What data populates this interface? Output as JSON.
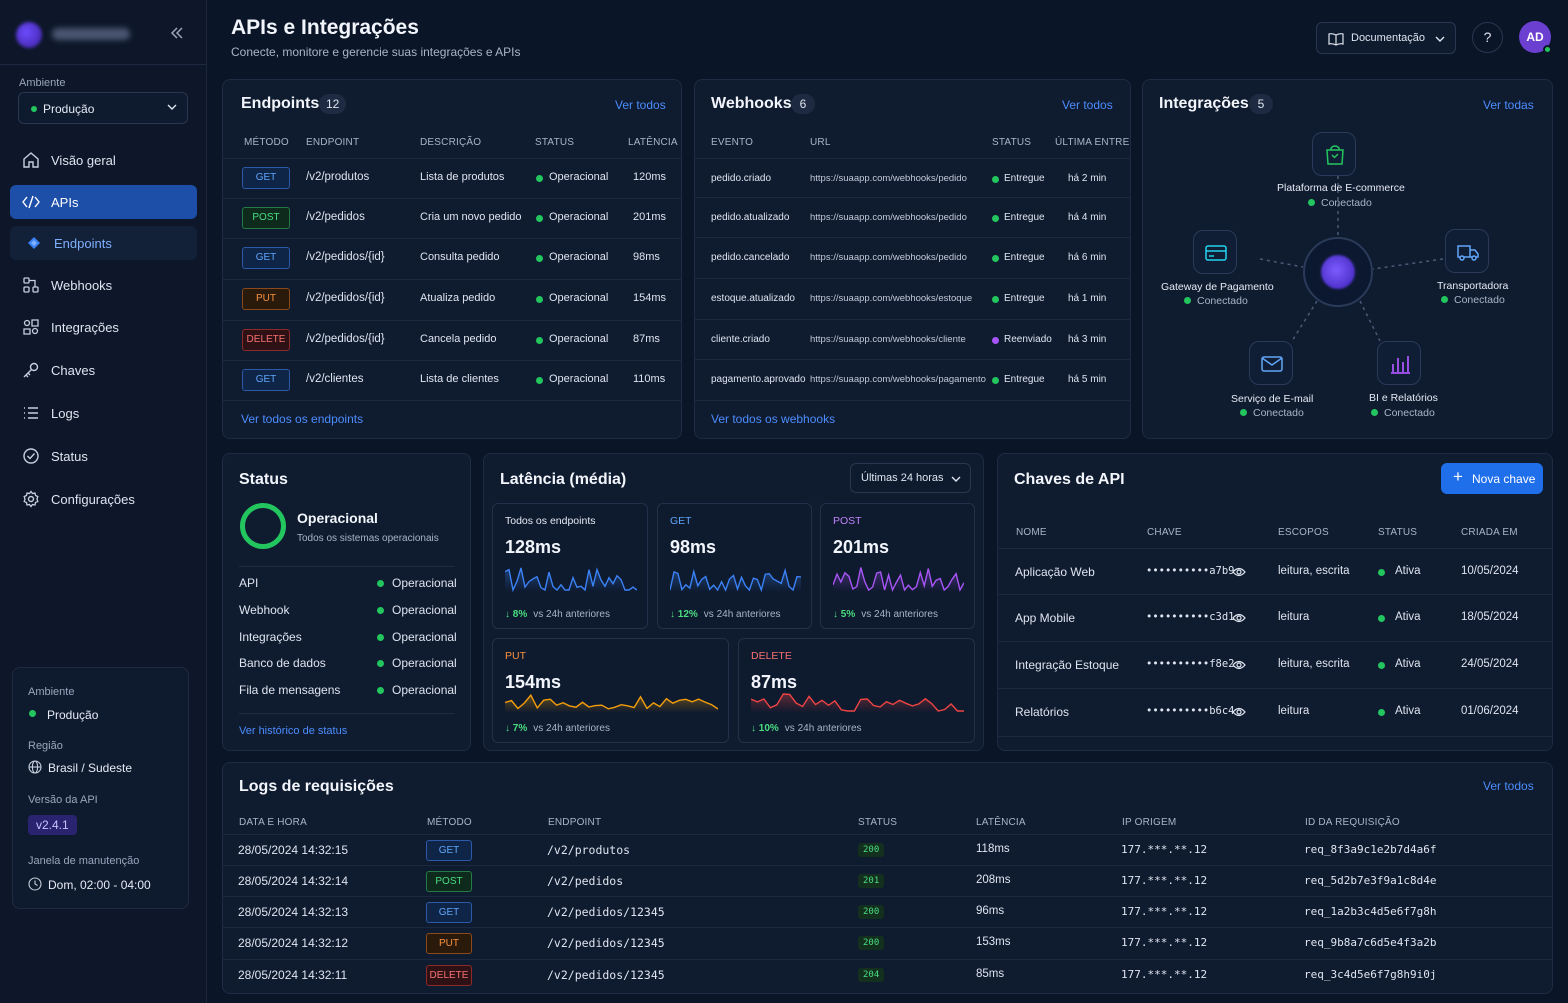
{
  "sidebar": {
    "env_label": "Ambiente",
    "env_value": "Produção",
    "nav": [
      {
        "label": "Visão geral",
        "icon": "home-icon"
      },
      {
        "label": "APIs",
        "icon": "code-icon"
      },
      {
        "label": "Endpoints",
        "icon": "diamond-icon"
      },
      {
        "label": "Webhooks",
        "icon": "webhook-icon"
      },
      {
        "label": "Integrações",
        "icon": "puzzle-icon"
      },
      {
        "label": "Chaves",
        "icon": "key-icon"
      },
      {
        "label": "Logs",
        "icon": "list-icon"
      },
      {
        "label": "Status",
        "icon": "check-circle-icon"
      },
      {
        "label": "Configurações",
        "icon": "gear-icon"
      }
    ],
    "env_card": {
      "env_label": "Ambiente",
      "env_value": "Produção",
      "region_label": "Região",
      "region_value": "Brasil / Sudeste",
      "version_label": "Versão da API",
      "version_value": "v2.4.1",
      "maint_label": "Janela de manutenção",
      "maint_value": "Dom, 02:00 - 04:00"
    }
  },
  "header": {
    "title": "APIs e Integrações",
    "subtitle": "Conecte, monitore e gerencie suas integrações e APIs",
    "doc_label": "Documentação",
    "help": "?",
    "avatar": "AD"
  },
  "endpoints": {
    "title": "Endpoints",
    "count": "12",
    "view_all": "Ver todos",
    "headers": [
      "MÉTODO",
      "ENDPOINT",
      "DESCRIÇÃO",
      "STATUS",
      "LATÊNCIA"
    ],
    "rows": [
      {
        "method": "GET",
        "path": "/v2/produtos",
        "desc": "Lista de produtos",
        "status": "Operacional",
        "latency": "120ms"
      },
      {
        "method": "POST",
        "path": "/v2/pedidos",
        "desc": "Cria um novo pedido",
        "status": "Operacional",
        "latency": "201ms"
      },
      {
        "method": "GET",
        "path": "/v2/pedidos/{id}",
        "desc": "Consulta pedido",
        "status": "Operacional",
        "latency": "98ms"
      },
      {
        "method": "PUT",
        "path": "/v2/pedidos/{id}",
        "desc": "Atualiza pedido",
        "status": "Operacional",
        "latency": "154ms"
      },
      {
        "method": "DELETE",
        "path": "/v2/pedidos/{id}",
        "desc": "Cancela pedido",
        "status": "Operacional",
        "latency": "87ms"
      },
      {
        "method": "GET",
        "path": "/v2/clientes",
        "desc": "Lista de clientes",
        "status": "Operacional",
        "latency": "110ms"
      }
    ],
    "footer": "Ver todos os endpoints"
  },
  "webhooks": {
    "title": "Webhooks",
    "count": "6",
    "view_all": "Ver todos",
    "headers": [
      "EVENTO",
      "URL",
      "STATUS",
      "ÚLTIMA ENTREGA"
    ],
    "rows": [
      {
        "event": "pedido.criado",
        "url": "https://suaapp.com/webhooks/pedido",
        "status": "Entregue",
        "last": "há 2 min",
        "color": "#22c55e"
      },
      {
        "event": "pedido.atualizado",
        "url": "https://suaapp.com/webhooks/pedido",
        "status": "Entregue",
        "last": "há 4 min",
        "color": "#22c55e"
      },
      {
        "event": "pedido.cancelado",
        "url": "https://suaapp.com/webhooks/pedido",
        "status": "Entregue",
        "last": "há 6 min",
        "color": "#22c55e"
      },
      {
        "event": "estoque.atualizado",
        "url": "https://suaapp.com/webhooks/estoque",
        "status": "Entregue",
        "last": "há 1 min",
        "color": "#22c55e"
      },
      {
        "event": "cliente.criado",
        "url": "https://suaapp.com/webhooks/cliente",
        "status": "Reenviado",
        "last": "há 3 min",
        "color": "#a855f7"
      },
      {
        "event": "pagamento.aprovado",
        "url": "https://suaapp.com/webhooks/pagamento",
        "status": "Entregue",
        "last": "há 5 min",
        "color": "#22c55e"
      }
    ],
    "footer": "Ver todos os webhooks"
  },
  "integrations": {
    "title": "Integrações",
    "count": "5",
    "view_all": "Ver todas",
    "nodes": [
      {
        "name": "Plataforma de E-commerce",
        "status": "Conectado",
        "icon": "shopping-bag-icon"
      },
      {
        "name": "Gateway de Pagamento",
        "status": "Conectado",
        "icon": "credit-card-icon"
      },
      {
        "name": "Transportadora",
        "status": "Conectado",
        "icon": "truck-icon"
      },
      {
        "name": "Serviço de E-mail",
        "status": "Conectado",
        "icon": "mail-icon"
      },
      {
        "name": "BI e Relatórios",
        "status": "Conectado",
        "icon": "bar-chart-icon"
      }
    ]
  },
  "status": {
    "title": "Status",
    "headline": "Operacional",
    "sub": "Todos os sistemas operacionais",
    "rows": [
      {
        "name": "API",
        "value": "Operacional"
      },
      {
        "name": "Webhook",
        "value": "Operacional"
      },
      {
        "name": "Integrações",
        "value": "Operacional"
      },
      {
        "name": "Banco de dados",
        "value": "Operacional"
      },
      {
        "name": "Fila de mensagens",
        "value": "Operacional"
      }
    ],
    "footer": "Ver histórico de status"
  },
  "latency": {
    "title": "Latência (média)",
    "range": "Últimas 24 horas",
    "boxes": [
      {
        "label": "Todos os endpoints",
        "value": "128ms",
        "change": "8%",
        "vs": "vs 24h anteriores",
        "color": "#3b82f6",
        "label_color": "#e6ebf5"
      },
      {
        "label": "GET",
        "value": "98ms",
        "change": "12%",
        "vs": "vs 24h anteriores",
        "color": "#3b82f6",
        "label_color": "#60a5fa"
      },
      {
        "label": "POST",
        "value": "201ms",
        "change": "5%",
        "vs": "vs 24h anteriores",
        "color": "#a855f7",
        "label_color": "#c084fc"
      },
      {
        "label": "PUT",
        "value": "154ms",
        "change": "7%",
        "vs": "vs 24h anteriores",
        "color": "#f59e0b",
        "label_color": "#fb923c"
      },
      {
        "label": "DELETE",
        "value": "87ms",
        "change": "10%",
        "vs": "vs 24h anteriores",
        "color": "#ef4444",
        "label_color": "#f87171"
      }
    ]
  },
  "keys": {
    "title": "Chaves de API",
    "new_key": "Nova chave",
    "headers": [
      "NOME",
      "CHAVE",
      "ESCOPOS",
      "STATUS",
      "CRIADA EM"
    ],
    "rows": [
      {
        "name": "Aplicação Web",
        "key": "••••••••••a7b9",
        "scopes": "leitura, escrita",
        "status": "Ativa",
        "created": "10/05/2024"
      },
      {
        "name": "App Mobile",
        "key": "••••••••••c3d1",
        "scopes": "leitura",
        "status": "Ativa",
        "created": "18/05/2024"
      },
      {
        "name": "Integração Estoque",
        "key": "••••••••••f8e2",
        "scopes": "leitura, escrita",
        "status": "Ativa",
        "created": "24/05/2024"
      },
      {
        "name": "Relatórios",
        "key": "••••••••••b6c4",
        "scopes": "leitura",
        "status": "Ativa",
        "created": "01/06/2024"
      }
    ]
  },
  "logs": {
    "title": "Logs de requisições",
    "view_all": "Ver todos",
    "headers": [
      "DATA E HORA",
      "MÉTODO",
      "ENDPOINT",
      "STATUS",
      "LATÊNCIA",
      "IP ORIGEM",
      "ID DA REQUISIÇÃO"
    ],
    "rows": [
      {
        "time": "28/05/2024 14:32:15",
        "method": "GET",
        "endpoint": "/v2/produtos",
        "status": "200",
        "latency": "118ms",
        "ip": "177.***.**.12",
        "id": "req_8f3a9c1e2b7d4a6f"
      },
      {
        "time": "28/05/2024 14:32:14",
        "method": "POST",
        "endpoint": "/v2/pedidos",
        "status": "201",
        "latency": "208ms",
        "ip": "177.***.**.12",
        "id": "req_5d2b7e3f9a1c8d4e"
      },
      {
        "time": "28/05/2024 14:32:13",
        "method": "GET",
        "endpoint": "/v2/pedidos/12345",
        "status": "200",
        "latency": "96ms",
        "ip": "177.***.**.12",
        "id": "req_1a2b3c4d5e6f7g8h"
      },
      {
        "time": "28/05/2024 14:32:12",
        "method": "PUT",
        "endpoint": "/v2/pedidos/12345",
        "status": "200",
        "latency": "153ms",
        "ip": "177.***.**.12",
        "id": "req_9b8a7c6d5e4f3a2b"
      },
      {
        "time": "28/05/2024 14:32:11",
        "method": "DELETE",
        "endpoint": "/v2/pedidos/12345",
        "status": "204",
        "latency": "85ms",
        "ip": "177.***.**.12",
        "id": "req_3c4d5e6f7g8h9i0j"
      }
    ]
  }
}
